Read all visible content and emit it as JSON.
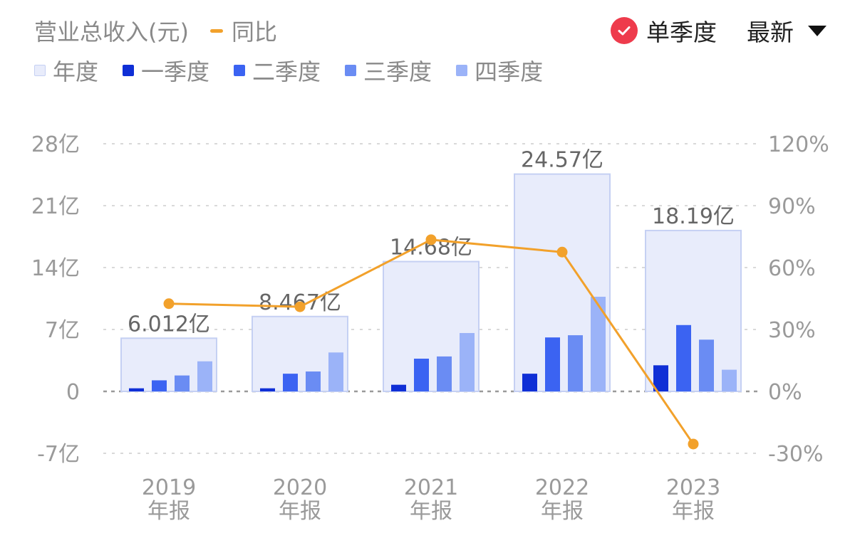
{
  "header": {
    "legend_series_title": "营业总收入(元)",
    "legend_line_label": "同比",
    "single_quarter_label": "单季度",
    "latest_label": "最新"
  },
  "legend": [
    {
      "label": "年度",
      "color": "#e8ecfb"
    },
    {
      "label": "一季度",
      "color": "#0f2fd6"
    },
    {
      "label": "二季度",
      "color": "#3b63f2"
    },
    {
      "label": "三季度",
      "color": "#6a8cf3"
    },
    {
      "label": "四季度",
      "color": "#9bb3f8"
    }
  ],
  "colors": {
    "annual_fill": "#e8ecfb",
    "annual_border": "#c5d0f3",
    "q1": "#0f2fd6",
    "q2": "#3b63f2",
    "q3": "#6a8cf3",
    "q4": "#9bb3f8",
    "yoy_line": "#f2a12b",
    "check": "#ee3b4c"
  },
  "chart_data": {
    "type": "bar",
    "categories": [
      "2019\n年报",
      "2020\n年报",
      "2021\n年报",
      "2022\n年报",
      "2023\n年报"
    ],
    "annual_labels": [
      "6.012亿",
      "8.467亿",
      "14.68亿",
      "24.57亿",
      "18.19亿"
    ],
    "series": [
      {
        "name": "年度",
        "values": [
          6.012,
          8.467,
          14.68,
          24.57,
          18.19
        ]
      },
      {
        "name": "一季度",
        "values": [
          0.35,
          0.35,
          0.75,
          2.0,
          2.95
        ]
      },
      {
        "name": "二季度",
        "values": [
          1.25,
          2.0,
          3.7,
          6.1,
          7.5
        ]
      },
      {
        "name": "三季度",
        "values": [
          1.8,
          2.25,
          3.95,
          6.35,
          5.85
        ]
      },
      {
        "name": "四季度",
        "values": [
          3.4,
          4.4,
          6.6,
          10.7,
          2.45
        ]
      }
    ],
    "yoy": {
      "name": "同比",
      "values": [
        42.5,
        41.0,
        73.5,
        67.5,
        -25.5
      ]
    },
    "y_left": {
      "ticks": [
        -7,
        0,
        7,
        14,
        21,
        28
      ],
      "tick_labels": [
        "-7亿",
        "0",
        "7亿",
        "14亿",
        "21亿",
        "28亿"
      ],
      "range": [
        -7,
        28
      ]
    },
    "y_right": {
      "ticks": [
        -30,
        0,
        30,
        60,
        90,
        120
      ],
      "tick_labels": [
        "-30%",
        "0%",
        "30%",
        "60%",
        "90%",
        "120%"
      ],
      "range": [
        -30,
        120
      ]
    },
    "grid": true
  }
}
